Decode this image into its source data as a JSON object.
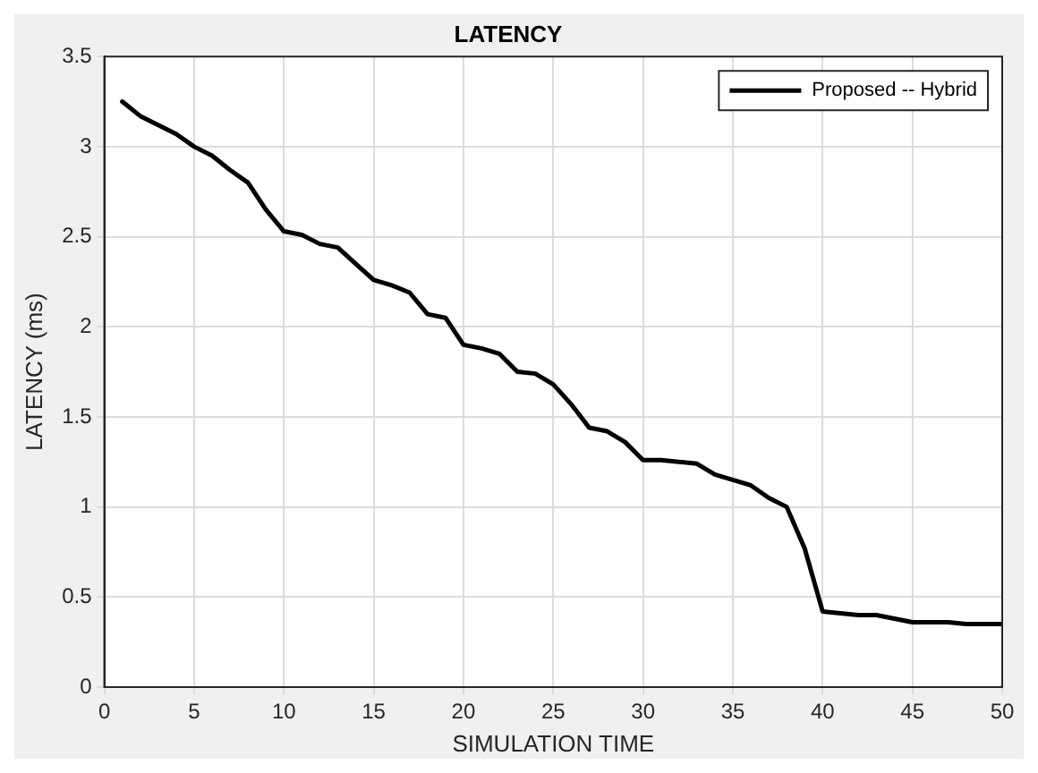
{
  "chart_data": {
    "type": "line",
    "title": "LATENCY",
    "xlabel": "SIMULATION TIME",
    "ylabel": "LATENCY (ms)",
    "x": [
      1,
      2,
      3,
      4,
      5,
      6,
      7,
      8,
      9,
      10,
      11,
      12,
      13,
      14,
      15,
      16,
      17,
      18,
      19,
      20,
      21,
      22,
      23,
      24,
      25,
      26,
      27,
      28,
      29,
      30,
      31,
      32,
      33,
      34,
      35,
      36,
      37,
      38,
      39,
      40,
      41,
      42,
      43,
      44,
      45,
      46,
      47,
      48,
      49,
      50
    ],
    "series": [
      {
        "name": "Proposed -- Hybrid",
        "color": "#000000",
        "values": [
          3.25,
          3.17,
          3.12,
          3.07,
          3.0,
          2.95,
          2.87,
          2.8,
          2.65,
          2.53,
          2.51,
          2.46,
          2.44,
          2.35,
          2.26,
          2.23,
          2.19,
          2.07,
          2.05,
          1.9,
          1.88,
          1.85,
          1.75,
          1.74,
          1.68,
          1.57,
          1.44,
          1.42,
          1.36,
          1.26,
          1.26,
          1.25,
          1.24,
          1.18,
          1.15,
          1.12,
          1.05,
          1.0,
          0.77,
          0.42,
          0.41,
          0.4,
          0.4,
          0.38,
          0.36,
          0.36,
          0.36,
          0.35,
          0.35,
          0.35
        ]
      }
    ],
    "xlim": [
      0,
      50
    ],
    "xticks": [
      0,
      5,
      10,
      15,
      20,
      25,
      30,
      35,
      40,
      45,
      50
    ],
    "ylim": [
      0,
      3.5
    ],
    "yticks": [
      0,
      0.5,
      1,
      1.5,
      2,
      2.5,
      3,
      3.5
    ],
    "grid": true,
    "legend": "top right",
    "marker": "none",
    "line_style": "solid"
  }
}
